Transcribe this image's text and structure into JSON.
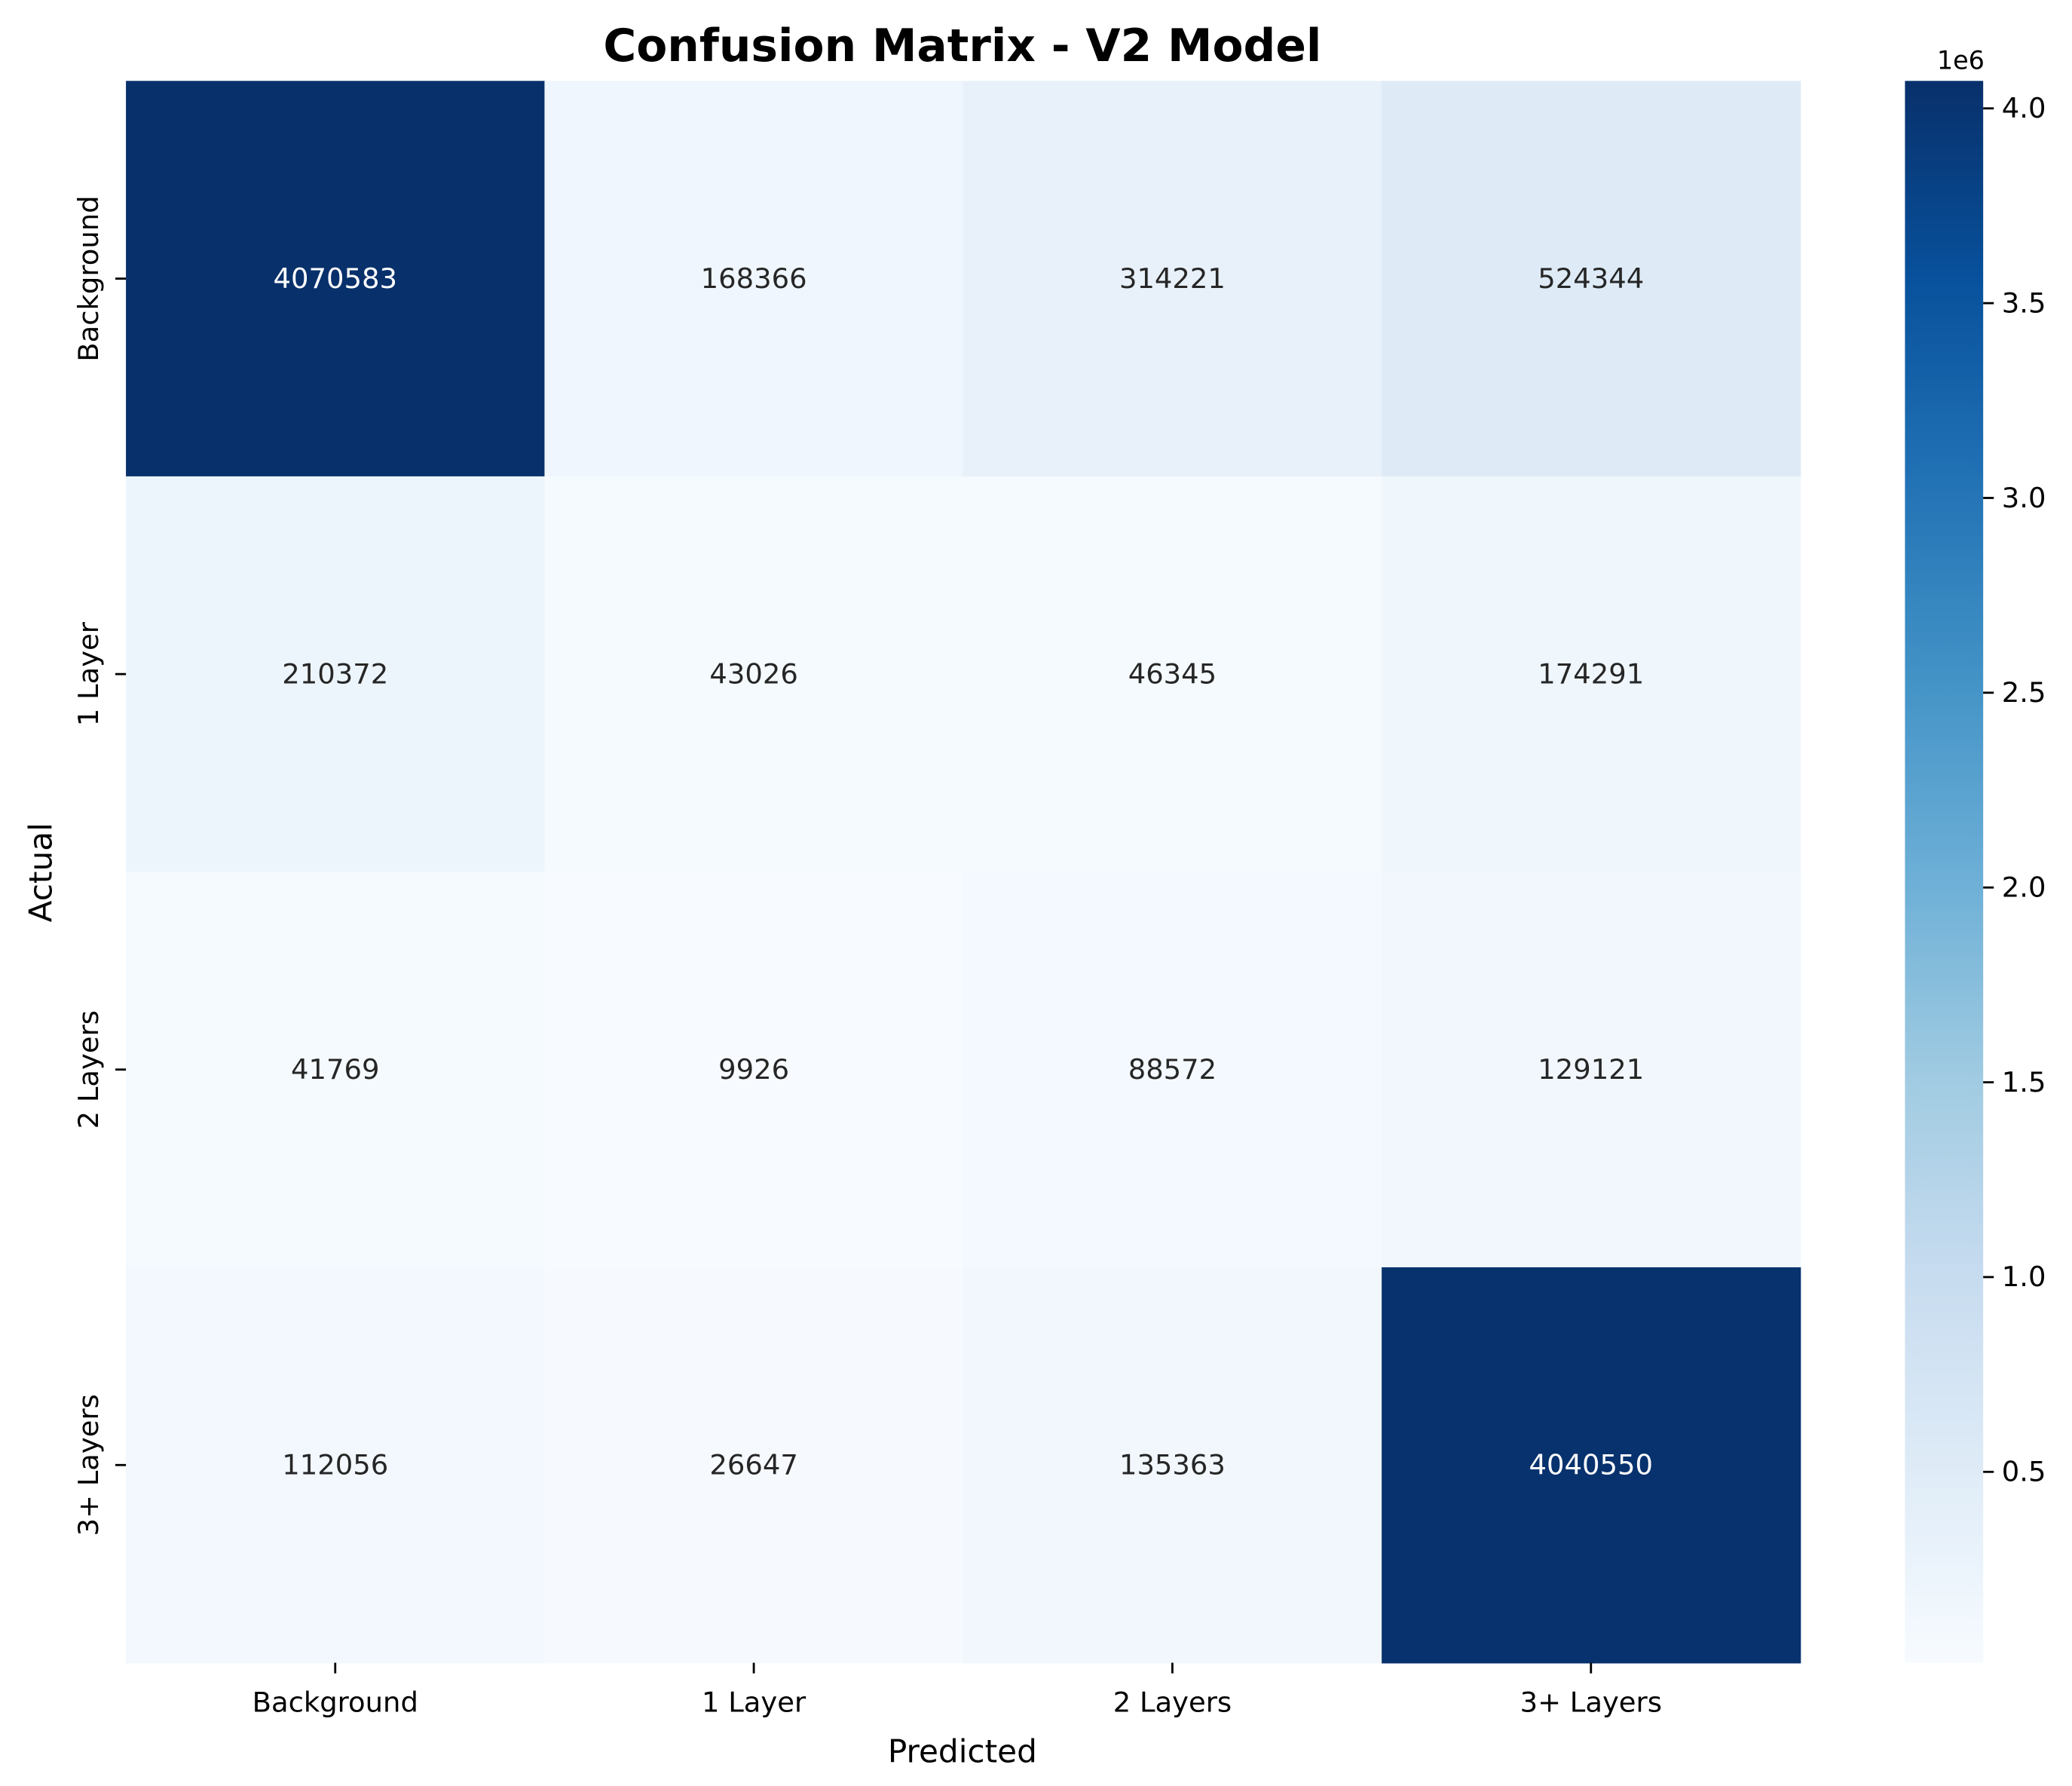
{
  "chart_data": {
    "type": "heatmap",
    "title": "Confusion Matrix - V2 Model",
    "xlabel": "Predicted",
    "ylabel": "Actual",
    "x_categories": [
      "Background",
      "1 Layer",
      "2 Layers",
      "3+ Layers"
    ],
    "y_categories": [
      "Background",
      "1 Layer",
      "2 Layers",
      "3+ Layers"
    ],
    "values": [
      [
        4070583,
        168366,
        314221,
        524344
      ],
      [
        210372,
        43026,
        46345,
        174291
      ],
      [
        41769,
        9926,
        88572,
        129121
      ],
      [
        112056,
        26647,
        135363,
        4040550
      ]
    ],
    "colormap": "Blues",
    "colorbar": {
      "multiplier_label": "1e6",
      "ticks": [
        0.5,
        1.0,
        1.5,
        2.0,
        2.5,
        3.0,
        3.5,
        4.0
      ],
      "tick_labels": [
        "0.5",
        "1.0",
        "1.5",
        "2.0",
        "2.5",
        "3.0",
        "3.5",
        "4.0"
      ],
      "range": [
        9926,
        4070583
      ]
    },
    "grid": false
  }
}
